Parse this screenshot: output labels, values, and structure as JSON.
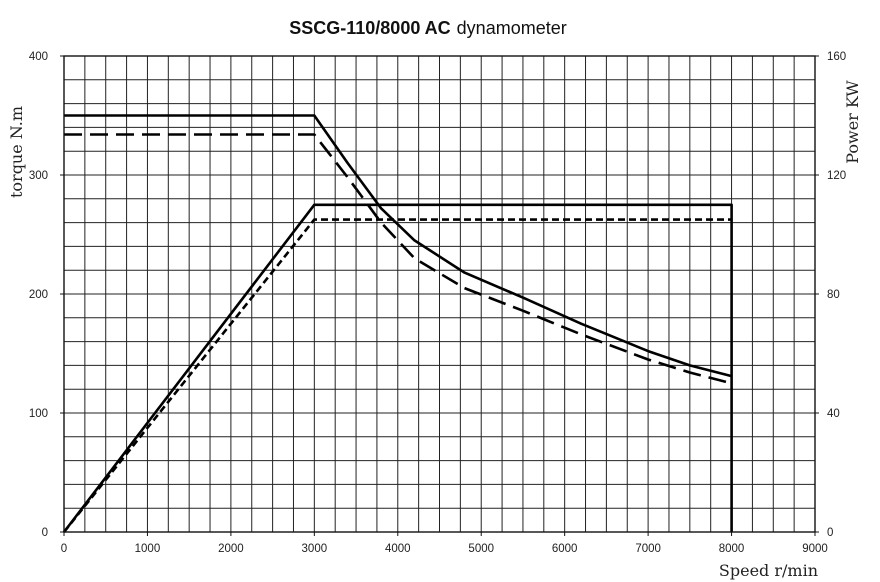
{
  "chart_data": {
    "type": "line",
    "title": {
      "bold_part": "SSCG-110/8000 AC",
      "normal_part": "dynamometer"
    },
    "xlabel": "Speed r/min",
    "ylabel_left": "torque N.m",
    "ylabel_right": "Power KW",
    "xlim": [
      0,
      9000
    ],
    "ylim_left": [
      0,
      400
    ],
    "ylim_right": [
      0,
      160
    ],
    "x_ticks": [
      "0",
      "1000",
      "2000",
      "3000",
      "4000",
      "5000",
      "6000",
      "7000",
      "8000",
      "9000"
    ],
    "y_left_ticks": [
      "0",
      "100",
      "200",
      "300",
      "400"
    ],
    "y_right_ticks": [
      "0",
      "40",
      "80",
      "120",
      "160"
    ],
    "grid": true,
    "series": [
      {
        "axis": "left",
        "style": "solid",
        "points": [
          [
            0,
            350
          ],
          [
            3000,
            350
          ],
          [
            3400,
            310
          ],
          [
            3800,
            272
          ],
          [
            4200,
            245
          ],
          [
            4800,
            218
          ],
          [
            5500,
            197
          ],
          [
            6200,
            175
          ],
          [
            7000,
            152
          ],
          [
            7500,
            140
          ],
          [
            8000,
            131
          ]
        ]
      },
      {
        "axis": "left",
        "style": "long-dash",
        "points": [
          [
            0,
            334
          ],
          [
            3000,
            334
          ],
          [
            3400,
            298
          ],
          [
            3800,
            260
          ],
          [
            4200,
            230
          ],
          [
            4800,
            205
          ],
          [
            5500,
            186
          ],
          [
            6200,
            166
          ],
          [
            7000,
            145
          ],
          [
            7500,
            134
          ],
          [
            8000,
            125
          ]
        ]
      },
      {
        "axis": "right",
        "style": "solid",
        "points": [
          [
            0,
            0
          ],
          [
            3000,
            110
          ],
          [
            8000,
            110
          ],
          [
            8000,
            0
          ]
        ]
      },
      {
        "axis": "right",
        "style": "short-dash",
        "points": [
          [
            0,
            0
          ],
          [
            3000,
            105
          ],
          [
            8000,
            105
          ]
        ]
      }
    ]
  }
}
